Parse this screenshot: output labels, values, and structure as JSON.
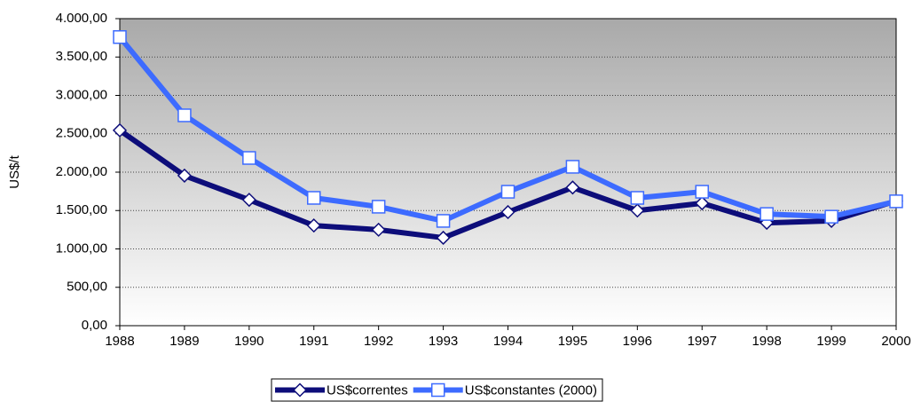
{
  "chart_data": {
    "type": "line",
    "y_label": "US$/t",
    "categories": [
      "1988",
      "1989",
      "1990",
      "1991",
      "1992",
      "1993",
      "1994",
      "1995",
      "1996",
      "1997",
      "1998",
      "1999",
      "2000"
    ],
    "series": [
      {
        "name": "US$correntes",
        "color": "#0d0d7a",
        "marker": "diamond",
        "values": [
          2545,
          1955,
          1640,
          1305,
          1250,
          1145,
          1480,
          1800,
          1500,
          1595,
          1340,
          1365,
          1625
        ]
      },
      {
        "name": "US$constantes (2000)",
        "color": "#3d6bff",
        "marker": "square",
        "values": [
          3760,
          2740,
          2185,
          1665,
          1550,
          1365,
          1745,
          2070,
          1665,
          1745,
          1455,
          1420,
          1620
        ]
      }
    ],
    "ylim": [
      0,
      4000
    ],
    "yticks": [
      {
        "value": 0,
        "label": "0,00"
      },
      {
        "value": 500,
        "label": "500,00"
      },
      {
        "value": 1000,
        "label": "1.000,00"
      },
      {
        "value": 1500,
        "label": "1.500,00"
      },
      {
        "value": 2000,
        "label": "2.000,00"
      },
      {
        "value": 2500,
        "label": "2.500,00"
      },
      {
        "value": 3000,
        "label": "3.000,00"
      },
      {
        "value": 3500,
        "label": "3.500,00"
      },
      {
        "value": 4000,
        "label": "4.000,00"
      }
    ],
    "grid": true,
    "legend": "bottom"
  }
}
